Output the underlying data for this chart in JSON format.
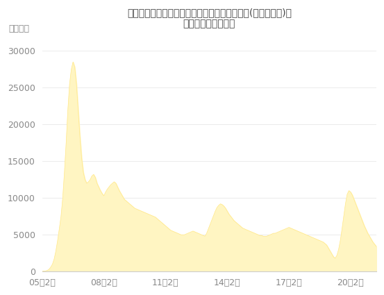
{
  "title_line1": "「ピクテ・グローバル・インカム株式ファンド(毎月分配型)」",
  "title_line2": "の純資産残高の推移",
  "ylabel": "（億円）",
  "ylim": [
    0,
    32000
  ],
  "yticks": [
    0,
    5000,
    10000,
    15000,
    20000,
    25000,
    30000
  ],
  "xtick_labels": [
    "05年2月",
    "08年2月",
    "11年2月",
    "14年2月",
    "17年2月",
    "20年2月"
  ],
  "fill_color": "#FFF5C2",
  "line_color": "#FFE88A",
  "bg_color": "#ffffff",
  "tick_color": "#888888",
  "title_color": "#444444",
  "data_y": [
    30,
    50,
    80,
    150,
    300,
    600,
    1000,
    1700,
    2800,
    4200,
    5800,
    7500,
    10000,
    13500,
    17500,
    22000,
    25500,
    27500,
    28500,
    27800,
    25500,
    22000,
    18500,
    15500,
    13500,
    12500,
    12000,
    12200,
    12500,
    13000,
    13200,
    12800,
    12000,
    11500,
    11000,
    10600,
    10300,
    10800,
    11200,
    11500,
    11800,
    12000,
    12200,
    12000,
    11500,
    11000,
    10600,
    10200,
    9800,
    9600,
    9400,
    9200,
    9000,
    8800,
    8600,
    8500,
    8400,
    8300,
    8200,
    8100,
    8000,
    7900,
    7800,
    7700,
    7600,
    7500,
    7400,
    7200,
    7000,
    6800,
    6600,
    6400,
    6200,
    6000,
    5800,
    5600,
    5500,
    5400,
    5300,
    5200,
    5100,
    5000,
    5000,
    5000,
    5100,
    5200,
    5300,
    5400,
    5500,
    5400,
    5300,
    5200,
    5100,
    5000,
    4900,
    4800,
    5200,
    5800,
    6400,
    7000,
    7600,
    8200,
    8700,
    9000,
    9200,
    9100,
    8900,
    8600,
    8200,
    7800,
    7500,
    7200,
    6900,
    6700,
    6500,
    6300,
    6100,
    5900,
    5800,
    5700,
    5600,
    5500,
    5400,
    5300,
    5200,
    5100,
    5000,
    4900,
    4900,
    4800,
    4800,
    4800,
    4900,
    5000,
    5100,
    5200,
    5200,
    5300,
    5400,
    5500,
    5600,
    5700,
    5800,
    5900,
    6000,
    5900,
    5800,
    5700,
    5600,
    5500,
    5400,
    5300,
    5200,
    5100,
    5000,
    4900,
    4800,
    4700,
    4600,
    4500,
    4400,
    4300,
    4200,
    4100,
    4000,
    3800,
    3600,
    3200,
    2800,
    2400,
    2000,
    1800,
    2200,
    3000,
    4200,
    5800,
    7500,
    9200,
    10500,
    11000,
    10800,
    10400,
    9800,
    9200,
    8600,
    8000,
    7400,
    6800,
    6200,
    5700,
    5200,
    4800,
    4400,
    4000,
    3700,
    3400
  ],
  "x_tick_positions": [
    0,
    36,
    72,
    108,
    144,
    180
  ],
  "total_months": 196
}
